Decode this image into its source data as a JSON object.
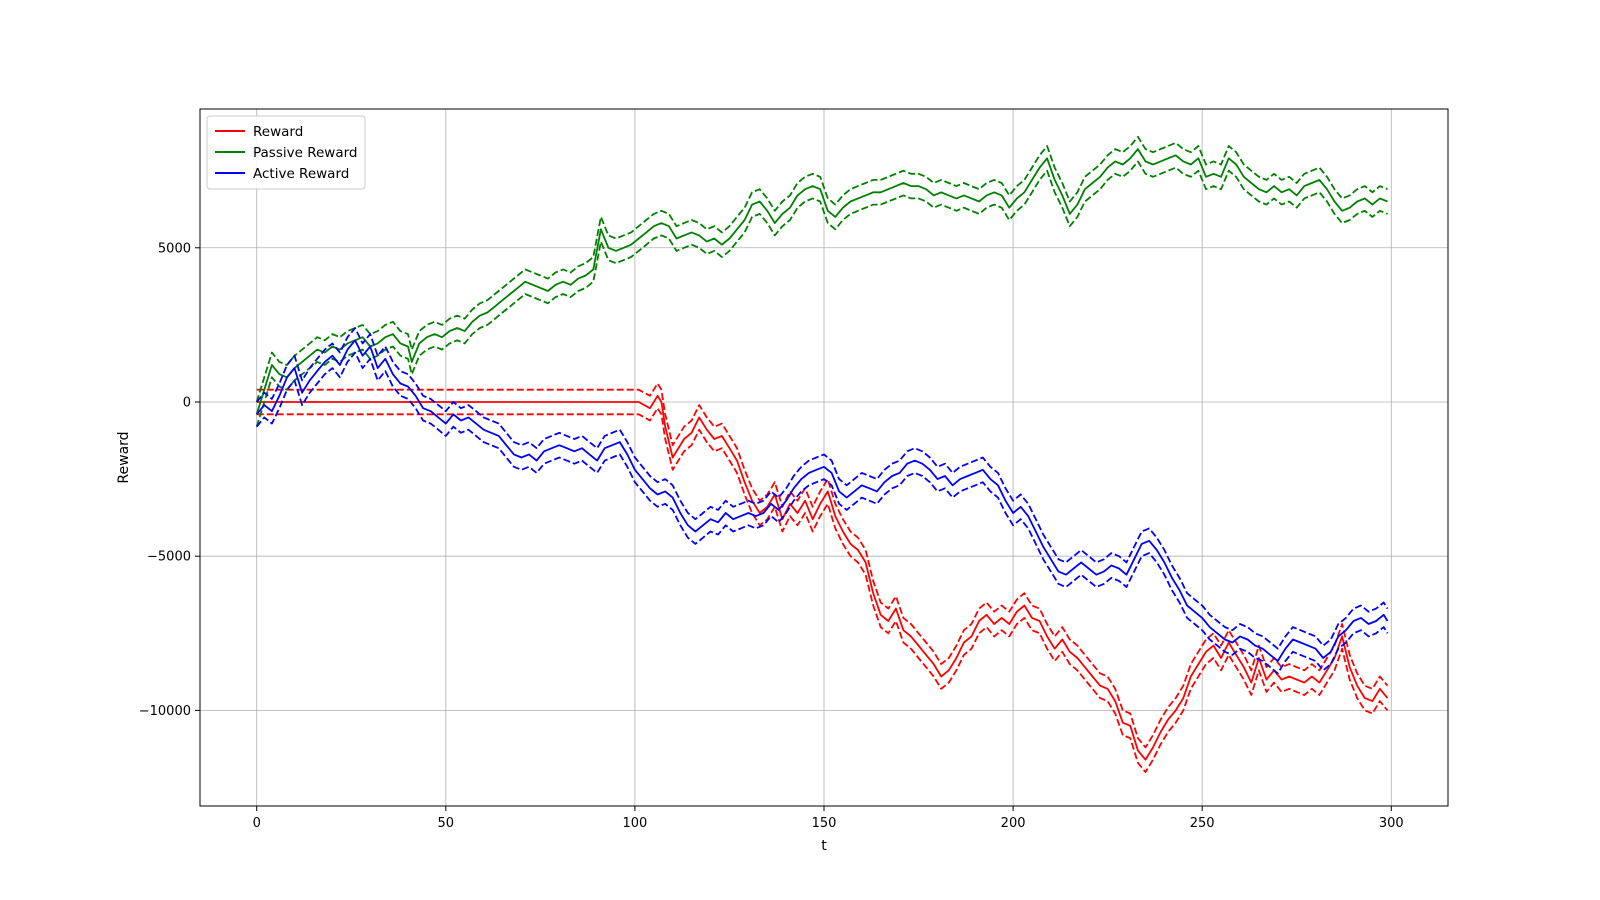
{
  "chart_data": {
    "type": "line",
    "xlabel": "t",
    "ylabel": "Reward",
    "xlim": [
      -15,
      315
    ],
    "ylim": [
      -13100,
      9500
    ],
    "xticks": [
      0,
      50,
      100,
      150,
      200,
      250,
      300
    ],
    "xtick_labels": [
      "0",
      "50",
      "100",
      "150",
      "200",
      "250",
      "300"
    ],
    "yticks": [
      5000,
      0,
      -5000,
      -10000
    ],
    "ytick_labels": [
      "5000",
      "0",
      "−5000",
      "−10000"
    ],
    "grid": true,
    "legend_position": "top-left",
    "band_halfwidth": 400,
    "series": [
      {
        "name": "Reward",
        "color": "#ff0000",
        "x": [
          0,
          100,
          101,
          104,
          106,
          107,
          108,
          110,
          113,
          115,
          117,
          119,
          121,
          123,
          125,
          127,
          129,
          131,
          133,
          135,
          137,
          139,
          141,
          143,
          145,
          147,
          149,
          151,
          153,
          155,
          157,
          159,
          161,
          163,
          165,
          167,
          169,
          171,
          173,
          175,
          177,
          179,
          181,
          183,
          185,
          187,
          189,
          191,
          193,
          195,
          197,
          199,
          201,
          203,
          205,
          207,
          209,
          211,
          213,
          215,
          217,
          219,
          221,
          223,
          225,
          227,
          229,
          231,
          233,
          235,
          237,
          239,
          241,
          243,
          245,
          247,
          249,
          251,
          253,
          255,
          257,
          259,
          261,
          263,
          265,
          267,
          269,
          271,
          273,
          275,
          277,
          279,
          281,
          283,
          285,
          287,
          289,
          291,
          293,
          295,
          297,
          299
        ],
        "y": [
          0,
          0,
          0,
          -200,
          200,
          0,
          -800,
          -1800,
          -1200,
          -1000,
          -500,
          -900,
          -1200,
          -1100,
          -1500,
          -1900,
          -2600,
          -3200,
          -3600,
          -3400,
          -3000,
          -3800,
          -3300,
          -3600,
          -3200,
          -3800,
          -3300,
          -2900,
          -3700,
          -4200,
          -4600,
          -4800,
          -5200,
          -6200,
          -6900,
          -7100,
          -6700,
          -7400,
          -7600,
          -7900,
          -8200,
          -8500,
          -8900,
          -8700,
          -8300,
          -7800,
          -7600,
          -7100,
          -6900,
          -7200,
          -7000,
          -7200,
          -6800,
          -6600,
          -7000,
          -7100,
          -7600,
          -8000,
          -7700,
          -8100,
          -8300,
          -8600,
          -8900,
          -9200,
          -9300,
          -9700,
          -10400,
          -10500,
          -11300,
          -11600,
          -11200,
          -10700,
          -10300,
          -10000,
          -9600,
          -8900,
          -8500,
          -8100,
          -7900,
          -8300,
          -7800,
          -8200,
          -8600,
          -9100,
          -8300,
          -9000,
          -8700,
          -9000,
          -8900,
          -9000,
          -9100,
          -8900,
          -9100,
          -8700,
          -8300,
          -7600,
          -8600,
          -9200,
          -9600,
          -9700,
          -9300,
          -9600
        ]
      },
      {
        "name": "Passive Reward",
        "color": "#008000",
        "x": [
          0,
          2,
          4,
          6,
          8,
          10,
          12,
          14,
          16,
          18,
          20,
          22,
          24,
          26,
          28,
          30,
          32,
          34,
          36,
          38,
          40,
          41,
          43,
          45,
          47,
          49,
          51,
          53,
          55,
          57,
          59,
          61,
          63,
          65,
          67,
          69,
          71,
          73,
          75,
          77,
          79,
          81,
          83,
          85,
          87,
          89,
          91,
          93,
          95,
          97,
          99,
          101,
          103,
          105,
          107,
          109,
          111,
          113,
          115,
          117,
          119,
          121,
          123,
          125,
          127,
          129,
          131,
          133,
          135,
          137,
          139,
          141,
          143,
          145,
          147,
          149,
          151,
          153,
          155,
          157,
          159,
          161,
          163,
          165,
          167,
          169,
          171,
          173,
          175,
          177,
          179,
          181,
          183,
          185,
          187,
          189,
          191,
          193,
          195,
          197,
          199,
          201,
          203,
          205,
          207,
          209,
          211,
          213,
          215,
          217,
          219,
          221,
          223,
          225,
          227,
          229,
          231,
          233,
          235,
          237,
          239,
          241,
          243,
          245,
          247,
          249,
          251,
          253,
          255,
          257,
          259,
          261,
          263,
          265,
          267,
          269,
          271,
          273,
          275,
          277,
          279,
          281,
          283,
          285,
          287,
          289,
          291,
          293,
          295,
          297,
          299
        ],
        "y": [
          -400,
          400,
          1200,
          900,
          800,
          1100,
          1300,
          1500,
          1700,
          1600,
          1800,
          1700,
          1900,
          2000,
          2100,
          1800,
          1900,
          2100,
          2200,
          1900,
          1800,
          1300,
          1900,
          2100,
          2200,
          2100,
          2300,
          2400,
          2300,
          2600,
          2800,
          2900,
          3100,
          3300,
          3500,
          3700,
          3900,
          3800,
          3700,
          3600,
          3800,
          3900,
          3800,
          4000,
          4100,
          4300,
          5600,
          5000,
          4900,
          5000,
          5100,
          5300,
          5500,
          5700,
          5800,
          5700,
          5300,
          5400,
          5500,
          5400,
          5200,
          5300,
          5100,
          5300,
          5600,
          5900,
          6400,
          6500,
          6200,
          5800,
          6100,
          6300,
          6700,
          6900,
          7000,
          6900,
          6200,
          6000,
          6300,
          6500,
          6600,
          6700,
          6800,
          6800,
          6900,
          7000,
          7100,
          7000,
          7000,
          6900,
          6700,
          6800,
          6700,
          6600,
          6700,
          6600,
          6500,
          6700,
          6800,
          6700,
          6300,
          6600,
          6800,
          7200,
          7600,
          7900,
          7200,
          6700,
          6100,
          6400,
          6900,
          7100,
          7300,
          7600,
          7800,
          7700,
          7900,
          8200,
          7800,
          7700,
          7800,
          7900,
          8000,
          7800,
          7700,
          7900,
          7300,
          7400,
          7300,
          7900,
          7700,
          7300,
          7100,
          6900,
          6800,
          7000,
          6800,
          6900,
          6700,
          7000,
          7100,
          7200,
          6900,
          6500,
          6200,
          6300,
          6500,
          6600,
          6400,
          6600,
          6500
        ]
      },
      {
        "name": "Active Reward",
        "color": "#0000ff",
        "x": [
          0,
          2,
          4,
          6,
          8,
          10,
          12,
          14,
          16,
          18,
          20,
          22,
          24,
          26,
          28,
          30,
          32,
          34,
          36,
          38,
          40,
          42,
          44,
          46,
          48,
          50,
          52,
          54,
          56,
          58,
          60,
          62,
          64,
          66,
          68,
          70,
          72,
          74,
          76,
          78,
          80,
          82,
          84,
          86,
          88,
          90,
          92,
          94,
          96,
          98,
          100,
          102,
          104,
          106,
          108,
          110,
          112,
          114,
          116,
          118,
          120,
          122,
          124,
          126,
          128,
          130,
          132,
          134,
          136,
          138,
          140,
          142,
          144,
          146,
          148,
          150,
          152,
          154,
          156,
          158,
          160,
          162,
          164,
          166,
          168,
          170,
          172,
          174,
          176,
          178,
          180,
          182,
          184,
          186,
          188,
          190,
          192,
          194,
          196,
          198,
          200,
          202,
          204,
          206,
          208,
          210,
          212,
          214,
          216,
          218,
          220,
          222,
          224,
          226,
          228,
          230,
          232,
          234,
          236,
          238,
          240,
          242,
          244,
          246,
          248,
          250,
          252,
          254,
          256,
          258,
          260,
          262,
          264,
          266,
          268,
          270,
          272,
          274,
          276,
          278,
          280,
          282,
          284,
          286,
          288,
          290,
          292,
          294,
          296,
          298,
          299
        ],
        "y": [
          -400,
          -100,
          -300,
          200,
          800,
          1100,
          300,
          700,
          1000,
          1300,
          1500,
          1200,
          1700,
          2000,
          1500,
          1800,
          1100,
          1400,
          900,
          600,
          500,
          200,
          -200,
          -300,
          -500,
          -700,
          -400,
          -600,
          -500,
          -700,
          -900,
          -1000,
          -1100,
          -1400,
          -1700,
          -1800,
          -1700,
          -1900,
          -1600,
          -1500,
          -1400,
          -1500,
          -1600,
          -1500,
          -1700,
          -1900,
          -1500,
          -1400,
          -1300,
          -1700,
          -2200,
          -2500,
          -2800,
          -3000,
          -2900,
          -3100,
          -3600,
          -4000,
          -4200,
          -4000,
          -3800,
          -3900,
          -3600,
          -3800,
          -3700,
          -3600,
          -3700,
          -3600,
          -3300,
          -3500,
          -3200,
          -2800,
          -2500,
          -2300,
          -2200,
          -2100,
          -2300,
          -2900,
          -3100,
          -2900,
          -2700,
          -2800,
          -2900,
          -2600,
          -2400,
          -2300,
          -2000,
          -1900,
          -2000,
          -2200,
          -2500,
          -2400,
          -2700,
          -2500,
          -2400,
          -2300,
          -2200,
          -2500,
          -2700,
          -3200,
          -3600,
          -3400,
          -3700,
          -4200,
          -4700,
          -5100,
          -5500,
          -5600,
          -5400,
          -5200,
          -5400,
          -5600,
          -5500,
          -5300,
          -5400,
          -5600,
          -5100,
          -4600,
          -4500,
          -4800,
          -5200,
          -5700,
          -6100,
          -6600,
          -6800,
          -7000,
          -7300,
          -7500,
          -7700,
          -7800,
          -7600,
          -7700,
          -7900,
          -8000,
          -8200,
          -8400,
          -8000,
          -7700,
          -7800,
          -7900,
          -8000,
          -8300,
          -8100,
          -7600,
          -7400,
          -7100,
          -7000,
          -7200,
          -7100,
          -6900,
          -7100
        ]
      }
    ]
  }
}
